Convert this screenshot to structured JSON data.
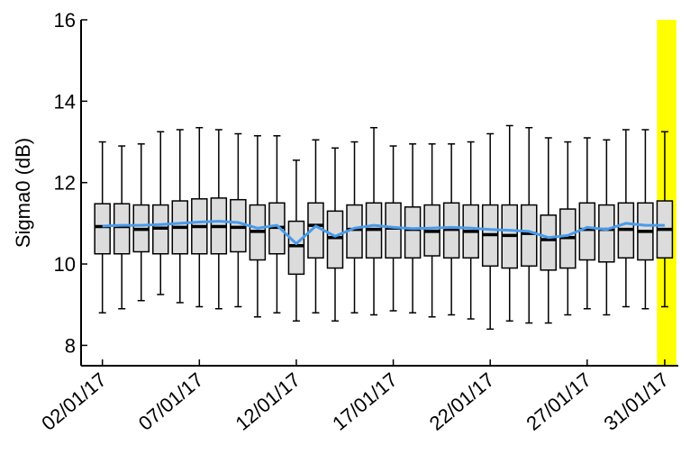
{
  "chart_data": {
    "type": "box",
    "title": "",
    "xlabel": "",
    "ylabel": "Sigma0 (dB)",
    "ylim": [
      7.5,
      16
    ],
    "yticks": [
      8,
      10,
      12,
      14,
      16
    ],
    "xticks": [
      {
        "day": 2,
        "label": "02/01/17"
      },
      {
        "day": 7,
        "label": "07/01/17"
      },
      {
        "day": 12,
        "label": "12/01/17"
      },
      {
        "day": 17,
        "label": "17/01/17"
      },
      {
        "day": 22,
        "label": "22/01/17"
      },
      {
        "day": 27,
        "label": "27/01/17"
      },
      {
        "day": 31,
        "label": "31/01/17"
      }
    ],
    "grid": false,
    "box_color": "#dcdcdc",
    "median_color": "#000000",
    "mean_line_color": "#4a9bea",
    "highlight": {
      "from_day": 30.6,
      "to_day": 31.6,
      "color": "#ffff00"
    },
    "boxes": [
      {
        "date": "02/01/17",
        "whisker_low": 8.8,
        "q1": 10.25,
        "median": 10.92,
        "q3": 11.48,
        "whisker_high": 13.0
      },
      {
        "date": "03/01/17",
        "whisker_low": 8.9,
        "q1": 10.25,
        "median": 10.92,
        "q3": 11.48,
        "whisker_high": 12.9
      },
      {
        "date": "04/01/17",
        "whisker_low": 9.1,
        "q1": 10.3,
        "median": 10.85,
        "q3": 11.45,
        "whisker_high": 12.95
      },
      {
        "date": "05/01/17",
        "whisker_low": 9.25,
        "q1": 10.25,
        "median": 10.88,
        "q3": 11.45,
        "whisker_high": 13.25
      },
      {
        "date": "06/01/17",
        "whisker_low": 9.05,
        "q1": 10.25,
        "median": 10.9,
        "q3": 11.55,
        "whisker_high": 13.3
      },
      {
        "date": "07/01/17",
        "whisker_low": 8.95,
        "q1": 10.25,
        "median": 10.92,
        "q3": 11.6,
        "whisker_high": 13.35
      },
      {
        "date": "08/01/17",
        "whisker_low": 8.9,
        "q1": 10.25,
        "median": 10.92,
        "q3": 11.62,
        "whisker_high": 13.3
      },
      {
        "date": "09/01/17",
        "whisker_low": 8.95,
        "q1": 10.3,
        "median": 10.9,
        "q3": 11.58,
        "whisker_high": 13.2
      },
      {
        "date": "10/01/17",
        "whisker_low": 8.7,
        "q1": 10.1,
        "median": 10.8,
        "q3": 11.45,
        "whisker_high": 13.15
      },
      {
        "date": "11/01/17",
        "whisker_low": 8.8,
        "q1": 10.25,
        "median": 10.9,
        "q3": 11.5,
        "whisker_high": 13.15
      },
      {
        "date": "12/01/17",
        "whisker_low": 8.6,
        "q1": 9.75,
        "median": 10.45,
        "q3": 11.05,
        "whisker_high": 12.55
      },
      {
        "date": "13/01/17",
        "whisker_low": 8.8,
        "q1": 10.15,
        "median": 10.95,
        "q3": 11.5,
        "whisker_high": 13.05
      },
      {
        "date": "14/01/17",
        "whisker_low": 8.6,
        "q1": 9.9,
        "median": 10.65,
        "q3": 11.3,
        "whisker_high": 12.85
      },
      {
        "date": "15/01/17",
        "whisker_low": 8.8,
        "q1": 10.15,
        "median": 10.85,
        "q3": 11.45,
        "whisker_high": 13.0
      },
      {
        "date": "16/01/17",
        "whisker_low": 8.75,
        "q1": 10.15,
        "median": 10.85,
        "q3": 11.5,
        "whisker_high": 13.35
      },
      {
        "date": "17/01/17",
        "whisker_low": 8.85,
        "q1": 10.15,
        "median": 10.88,
        "q3": 11.5,
        "whisker_high": 12.9
      },
      {
        "date": "18/01/17",
        "whisker_low": 8.8,
        "q1": 10.15,
        "median": 10.85,
        "q3": 11.4,
        "whisker_high": 12.95
      },
      {
        "date": "19/01/17",
        "whisker_low": 8.7,
        "q1": 10.2,
        "median": 10.8,
        "q3": 11.45,
        "whisker_high": 12.95
      },
      {
        "date": "20/01/17",
        "whisker_low": 8.75,
        "q1": 10.15,
        "median": 10.85,
        "q3": 11.5,
        "whisker_high": 12.95
      },
      {
        "date": "21/01/17",
        "whisker_low": 8.65,
        "q1": 10.15,
        "median": 10.8,
        "q3": 11.45,
        "whisker_high": 13.0
      },
      {
        "date": "22/01/17",
        "whisker_low": 8.4,
        "q1": 9.95,
        "median": 10.72,
        "q3": 11.45,
        "whisker_high": 13.2
      },
      {
        "date": "23/01/17",
        "whisker_low": 8.6,
        "q1": 9.9,
        "median": 10.7,
        "q3": 11.45,
        "whisker_high": 13.4
      },
      {
        "date": "24/01/17",
        "whisker_low": 8.55,
        "q1": 9.95,
        "median": 10.75,
        "q3": 11.45,
        "whisker_high": 13.35
      },
      {
        "date": "25/01/17",
        "whisker_low": 8.55,
        "q1": 9.85,
        "median": 10.6,
        "q3": 11.2,
        "whisker_high": 13.1
      },
      {
        "date": "26/01/17",
        "whisker_low": 8.75,
        "q1": 9.9,
        "median": 10.65,
        "q3": 11.35,
        "whisker_high": 13.0
      },
      {
        "date": "27/01/17",
        "whisker_low": 8.9,
        "q1": 10.1,
        "median": 10.85,
        "q3": 11.5,
        "whisker_high": 13.1
      },
      {
        "date": "28/01/17",
        "whisker_low": 8.75,
        "q1": 10.05,
        "median": 10.85,
        "q3": 11.45,
        "whisker_high": 13.05
      },
      {
        "date": "29/01/17",
        "whisker_low": 8.95,
        "q1": 10.15,
        "median": 10.85,
        "q3": 11.5,
        "whisker_high": 13.3
      },
      {
        "date": "30/01/17",
        "whisker_low": 8.9,
        "q1": 10.1,
        "median": 10.8,
        "q3": 11.5,
        "whisker_high": 13.3
      },
      {
        "date": "31/01/17",
        "whisker_low": 8.95,
        "q1": 10.15,
        "median": 10.85,
        "q3": 11.55,
        "whisker_high": 13.25
      }
    ],
    "mean_line": [
      10.93,
      10.95,
      10.95,
      10.97,
      11.0,
      11.03,
      11.05,
      11.02,
      10.88,
      10.95,
      10.5,
      10.93,
      10.68,
      10.88,
      10.95,
      10.9,
      10.87,
      10.88,
      10.9,
      10.88,
      10.85,
      10.83,
      10.8,
      10.65,
      10.7,
      10.9,
      10.85,
      11.0,
      10.95,
      10.95
    ]
  }
}
